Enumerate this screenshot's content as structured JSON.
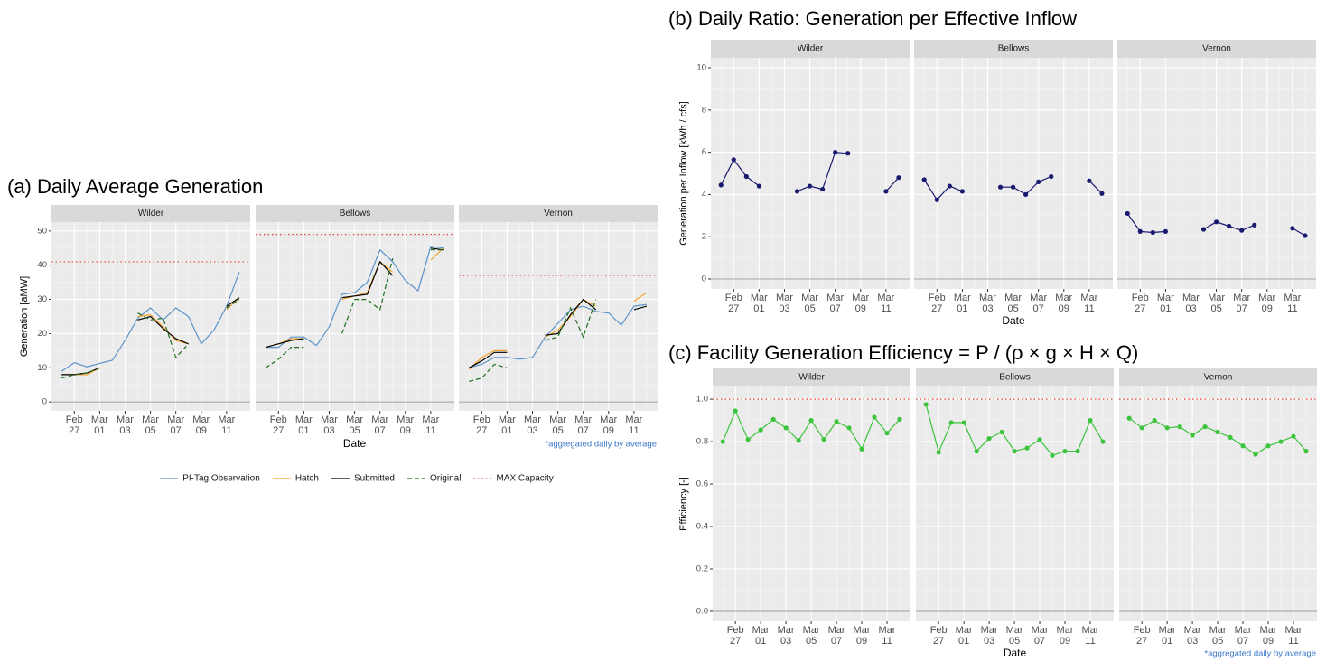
{
  "chart_data": [
    {
      "type": "line",
      "title": "(a) Daily Average Generation",
      "xlabel": "Date",
      "ylabel": "Generation [aMW]",
      "annotation": "*aggregated daily by average",
      "x": [
        "Feb 26",
        "Feb 27",
        "Feb 28",
        "Mar 01",
        "Mar 02",
        "Mar 03",
        "Mar 04",
        "Mar 05",
        "Mar 06",
        "Mar 07",
        "Mar 08",
        "Mar 09",
        "Mar 10",
        "Mar 11",
        "Mar 12"
      ],
      "xticks": [
        "Feb 27",
        "Mar 01",
        "Mar 03",
        "Mar 05",
        "Mar 07",
        "Mar 09",
        "Mar 11"
      ],
      "ylim": [
        -2.6,
        52.6
      ],
      "yticks": [
        0,
        10,
        20,
        30,
        40,
        50
      ],
      "hline": 0,
      "series": [
        {
          "name": "PI-Tag Observation",
          "color": "#5b93c9",
          "style": "solid"
        },
        {
          "name": "Hatch",
          "color": "#f2a22a",
          "style": "solid"
        },
        {
          "name": "Submitted",
          "color": "#000000",
          "style": "solid"
        },
        {
          "name": "Original",
          "color": "#1f6e1f",
          "style": "dashed"
        },
        {
          "name": "MAX Capacity",
          "color": "#e8453c",
          "style": "dotted"
        }
      ],
      "panels": [
        {
          "title": "Wilder",
          "series": [
            {
              "values": [
                9,
                11.5,
                10.3,
                11.3,
                12.2,
                18,
                24.5,
                27.5,
                24,
                27.5,
                25,
                17,
                21,
                28,
                38
              ]
            },
            {
              "values": [
                8,
                8,
                8,
                10,
                null,
                null,
                25,
                25.5,
                22,
                18,
                17,
                null,
                null,
                27,
                30.5
              ]
            },
            {
              "values": [
                8,
                8,
                8.5,
                10,
                null,
                null,
                24,
                25,
                21.5,
                18.5,
                17,
                null,
                null,
                28,
                30.5
              ]
            },
            {
              "values": [
                7,
                8,
                8.5,
                10,
                null,
                null,
                26,
                24,
                24.5,
                13,
                17,
                null,
                null,
                27.5,
                30
              ]
            },
            {
              "value": 41
            }
          ]
        },
        {
          "title": "Bellows",
          "series": [
            {
              "values": [
                16,
                16,
                19,
                19,
                16.5,
                22,
                31.5,
                32,
                35,
                44.5,
                41,
                35.5,
                32.5,
                45.5,
                45
              ]
            },
            {
              "values": [
                16,
                17,
                18.5,
                18.5,
                null,
                null,
                30,
                31,
                32,
                41,
                38,
                null,
                null,
                41.5,
                45
              ]
            },
            {
              "values": [
                16,
                17,
                18,
                18.5,
                null,
                null,
                30.5,
                31,
                31.5,
                41,
                37,
                null,
                null,
                45,
                44.5
              ]
            },
            {
              "values": [
                10,
                12.5,
                16,
                16,
                null,
                null,
                20,
                30,
                30,
                27,
                42,
                null,
                null,
                44.5,
                44.5
              ]
            },
            {
              "value": 49
            }
          ]
        },
        {
          "title": "Vernon",
          "series": [
            {
              "values": [
                10,
                11,
                13,
                13,
                12.5,
                13,
                19,
                23,
                27,
                28,
                26.5,
                26,
                22.5,
                28,
                28.5
              ]
            },
            {
              "values": [
                9.5,
                13,
                15,
                15,
                null,
                null,
                19,
                21,
                25,
                30,
                28,
                null,
                null,
                29.5,
                32
              ]
            },
            {
              "values": [
                10,
                12,
                14.5,
                14.5,
                null,
                null,
                19.5,
                20,
                25.5,
                30,
                27,
                null,
                null,
                27,
                28
              ]
            },
            {
              "values": [
                6,
                7,
                11,
                10,
                null,
                null,
                18,
                19,
                27.5,
                19,
                30,
                null,
                null,
                null,
                null
              ]
            },
            {
              "value": 37
            }
          ]
        }
      ]
    },
    {
      "type": "line",
      "markers": true,
      "title": "(b) Daily Ratio: Generation per Effective Inflow",
      "xlabel": "Date",
      "ylabel": "Generation per Inflow [kWh / cfs]",
      "x": [
        "Feb 26",
        "Feb 27",
        "Feb 28",
        "Mar 01",
        "Mar 02",
        "Mar 03",
        "Mar 04",
        "Mar 05",
        "Mar 06",
        "Mar 07",
        "Mar 08",
        "Mar 09",
        "Mar 10",
        "Mar 11",
        "Mar 12"
      ],
      "xticks": [
        "Feb 27",
        "Mar 01",
        "Mar 03",
        "Mar 05",
        "Mar 07",
        "Mar 09",
        "Mar 11"
      ],
      "ylim": [
        -0.47,
        10.47
      ],
      "yticks": [
        0,
        2,
        4,
        6,
        8,
        10
      ],
      "hline": 0,
      "series": [
        {
          "color": "#191970",
          "style": "solid"
        }
      ],
      "panels": [
        {
          "title": "Wilder",
          "series": [
            {
              "values": [
                4.45,
                5.65,
                4.85,
                4.4,
                null,
                null,
                4.15,
                4.4,
                4.25,
                6.0,
                5.95,
                null,
                null,
                4.15,
                4.8
              ]
            }
          ]
        },
        {
          "title": "Bellows",
          "series": [
            {
              "values": [
                4.7,
                3.75,
                4.4,
                4.15,
                null,
                null,
                4.35,
                4.35,
                4.0,
                4.6,
                4.85,
                null,
                null,
                4.65,
                4.05
              ]
            }
          ]
        },
        {
          "title": "Vernon",
          "series": [
            {
              "values": [
                3.1,
                2.25,
                2.2,
                2.25,
                null,
                null,
                2.35,
                2.7,
                2.5,
                2.3,
                2.55,
                null,
                null,
                2.4,
                2.05
              ]
            }
          ]
        }
      ]
    },
    {
      "type": "line",
      "markers": true,
      "title": "(c) Facility Generation Efficiency = P / (ρ × g × H × Q)",
      "xlabel": "Date",
      "ylabel": "Efficiency [-]",
      "annotation": "*aggregated daily by average",
      "x": [
        "Feb 26",
        "Feb 27",
        "Feb 28",
        "Mar 01",
        "Mar 02",
        "Mar 03",
        "Mar 04",
        "Mar 05",
        "Mar 06",
        "Mar 07",
        "Mar 08",
        "Mar 09",
        "Mar 10",
        "Mar 11",
        "Mar 12"
      ],
      "xticks": [
        "Feb 27",
        "Mar 01",
        "Mar 03",
        "Mar 05",
        "Mar 07",
        "Mar 09",
        "Mar 11"
      ],
      "ylim": [
        -0.047,
        1.06
      ],
      "yticks": [
        {
          "value": 0,
          "label": "0.0"
        },
        0.2,
        0.4,
        0.6,
        0.8,
        {
          "value": 1,
          "label": "1.0"
        }
      ],
      "hline": 0,
      "reference": 1,
      "reference_color": "#e8453c",
      "series": [
        {
          "color": "#3cc43c",
          "style": "solid"
        }
      ],
      "panels": [
        {
          "title": "Wilder",
          "series": [
            {
              "values": [
                0.8,
                0.945,
                0.81,
                0.855,
                0.905,
                0.865,
                0.805,
                0.9,
                0.81,
                0.895,
                0.865,
                0.765,
                0.915,
                0.84,
                0.905
              ]
            }
          ]
        },
        {
          "title": "Bellows",
          "series": [
            {
              "values": [
                0.975,
                0.75,
                0.89,
                0.89,
                0.755,
                0.815,
                0.845,
                0.755,
                0.77,
                0.81,
                0.735,
                0.755,
                0.755,
                0.9,
                0.8
              ]
            }
          ]
        },
        {
          "title": "Vernon",
          "series": [
            {
              "values": [
                0.91,
                0.865,
                0.9,
                0.865,
                0.87,
                0.83,
                0.87,
                0.845,
                0.82,
                0.78,
                0.74,
                0.78,
                0.8,
                0.825,
                0.755
              ]
            }
          ]
        }
      ]
    }
  ]
}
